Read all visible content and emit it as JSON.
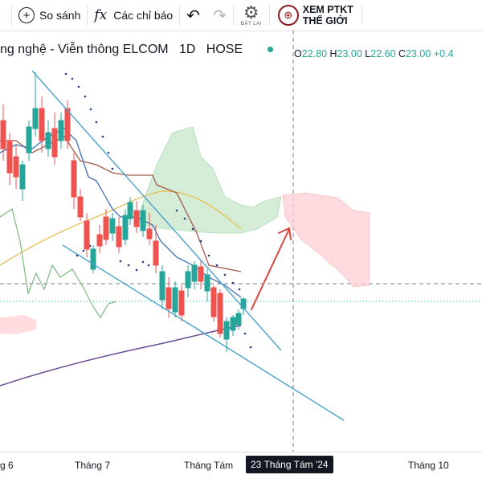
{
  "toolbar": {
    "compare_label": "So sánh",
    "indicators_label": "Các chỉ báo",
    "settings_caption": "ĐẶT LẠI",
    "view_ta_line1": "XEM PTKT",
    "view_ta_line2": "THẾ GIỚI"
  },
  "legend": {
    "title": "ng nghệ - Viễn thông ELCOM",
    "interval": "1D",
    "exchange": "HOSE",
    "status_color": "#26a69a",
    "open_label": "O",
    "open": "22.80",
    "high_label": "H",
    "high": "23.00",
    "low_label": "L",
    "low": "22.60",
    "close_label": "C",
    "close": "23.00",
    "change": "+0.4"
  },
  "xaxis": {
    "labels": [
      "g 6",
      "Tháng 7",
      "Tháng Tám",
      "Tháng 10"
    ],
    "crosshair_label": "23 Tháng Tám '24"
  },
  "colors": {
    "up": "#26a69a",
    "down": "#ef5350",
    "trendline": "#4aa3c8",
    "arrow": "#d9473f",
    "cloud_bull": "#c8e6c9",
    "cloud_bear": "#ffcdd2",
    "ma_long": "#6a4c93",
    "ma_mid": "#e6c15a"
  },
  "icons": [
    "plus-circle-icon",
    "function-icon",
    "undo-icon",
    "redo-icon",
    "gear-icon",
    "globe-icon"
  ]
}
